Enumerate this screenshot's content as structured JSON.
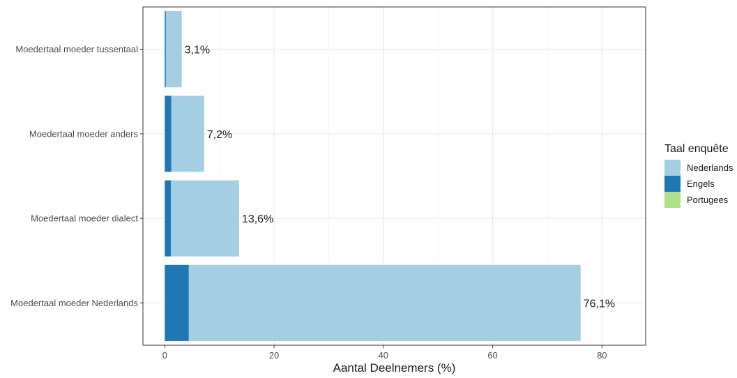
{
  "chart_data": {
    "type": "bar",
    "orientation": "horizontal",
    "stacked": true,
    "categories": [
      "Moedertaal moeder tussentaal",
      "Moedertaal moeder anders",
      "Moedertaal moeder dialect",
      "Moedertaal moeder Nederlands"
    ],
    "series": [
      {
        "name": "Portugees",
        "color": "#b2df8a",
        "values": [
          0.0,
          0.0,
          0.0,
          0.0
        ]
      },
      {
        "name": "Engels",
        "color": "#1f78b4",
        "values": [
          0.2,
          1.2,
          1.1,
          4.4
        ]
      },
      {
        "name": "Nederlands",
        "color": "#a6cee3",
        "values": [
          2.9,
          6.0,
          12.5,
          71.7
        ]
      }
    ],
    "totals": [
      3.1,
      7.2,
      13.6,
      76.1
    ],
    "bar_labels": [
      "3,1%",
      "7,2%",
      "13,6%",
      "76,1%"
    ],
    "xlabel": "Aantal Deelnemers (%)",
    "ylabel": "",
    "xlim": [
      -4,
      88
    ],
    "xticks": [
      0,
      20,
      40,
      60,
      80
    ],
    "xtick_labels": [
      "0",
      "20",
      "40",
      "60",
      "80"
    ],
    "grid": true,
    "legend": {
      "title": "Taal enquête",
      "position": "right",
      "entries": [
        {
          "label": "Nederlands",
          "color": "#a6cee3"
        },
        {
          "label": "Engels",
          "color": "#1f78b4"
        },
        {
          "label": "Portugees",
          "color": "#b2df8a"
        }
      ]
    }
  }
}
